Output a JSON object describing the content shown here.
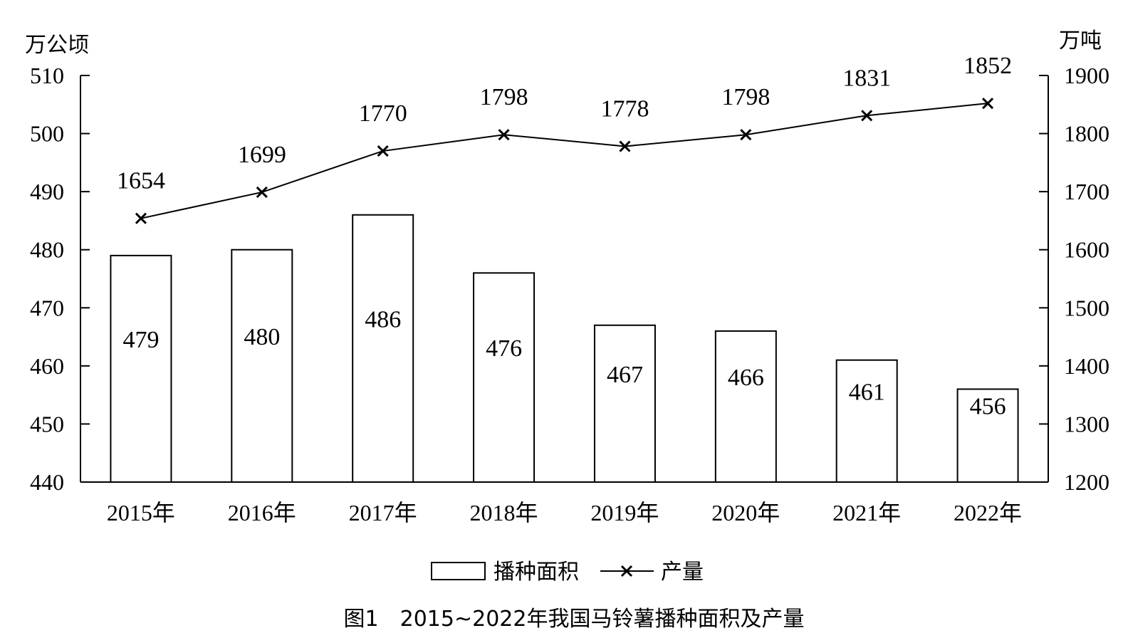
{
  "chart_data": {
    "type": "bar",
    "categories": [
      "2015年",
      "2016年",
      "2017年",
      "2018年",
      "2019年",
      "2020年",
      "2021年",
      "2022年"
    ],
    "series": [
      {
        "name": "播种面积",
        "type": "bar",
        "axis": "left",
        "values": [
          479,
          480,
          486,
          476,
          467,
          466,
          461,
          456
        ]
      },
      {
        "name": "产量",
        "type": "line",
        "marker": "x",
        "axis": "right",
        "values": [
          1654,
          1699,
          1770,
          1798,
          1778,
          1798,
          1831,
          1852
        ]
      }
    ],
    "y_left": {
      "unit": "万公顷",
      "ylim": [
        440,
        510
      ],
      "ticks": [
        440,
        450,
        460,
        470,
        480,
        490,
        500,
        510
      ]
    },
    "y_right": {
      "unit": "万吨",
      "ylim": [
        1200,
        1900
      ],
      "ticks": [
        1200,
        1300,
        1400,
        1500,
        1600,
        1700,
        1800,
        1900
      ]
    },
    "legend_position": "bottom-center",
    "grid": false,
    "caption": "图1　2015~2022年我国马铃薯播种面积及产量"
  }
}
